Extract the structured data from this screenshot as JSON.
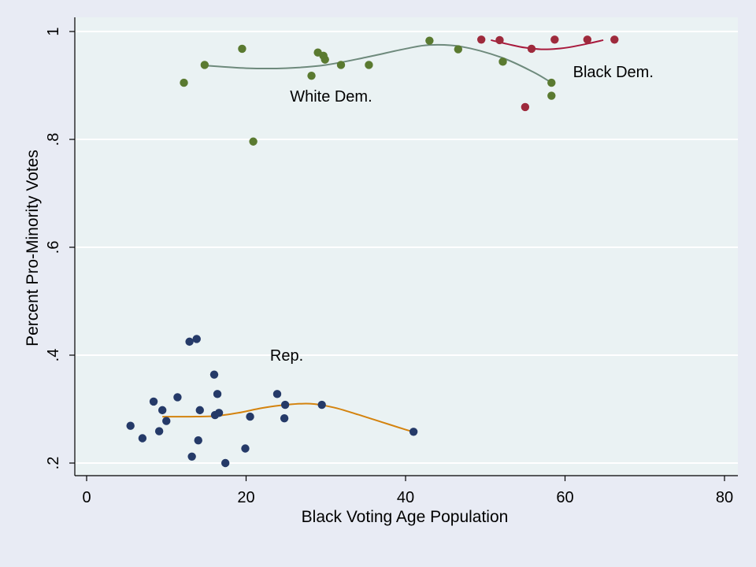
{
  "chart_data": {
    "type": "scatter",
    "title": "",
    "xlabel": "Black Voting Age Population",
    "ylabel": "Percent Pro-Minority Votes",
    "xlim": [
      0,
      80
    ],
    "ylim": [
      0.2,
      1.0
    ],
    "x_ticks": [
      0,
      20,
      40,
      60,
      80
    ],
    "x_tick_labels": [
      "0",
      "20",
      "40",
      "60",
      "80"
    ],
    "y_ticks": [
      0.2,
      0.4,
      0.6,
      0.8,
      1.0
    ],
    "y_tick_labels": [
      ".2",
      ".4",
      ".6",
      ".8",
      "1"
    ],
    "grid": "horizontal",
    "legend": "none",
    "annotations": [
      {
        "text": "White Dem.",
        "x": 25.5,
        "y": 0.87
      },
      {
        "text": "Black Dem.",
        "x": 61,
        "y": 0.915
      },
      {
        "text": "Rep.",
        "x": 23,
        "y": 0.39
      }
    ],
    "series": [
      {
        "color": "#5a7a30",
        "line_color": "#6e8a7c",
        "points": [
          [
            12.2,
            0.905
          ],
          [
            14.8,
            0.938
          ],
          [
            19.5,
            0.968
          ],
          [
            20.9,
            0.796
          ],
          [
            28.2,
            0.918
          ],
          [
            29.0,
            0.961
          ],
          [
            29.7,
            0.955
          ],
          [
            29.9,
            0.948
          ],
          [
            31.9,
            0.938
          ],
          [
            35.4,
            0.938
          ],
          [
            43.0,
            0.983
          ],
          [
            46.6,
            0.967
          ],
          [
            52.2,
            0.944
          ],
          [
            58.3,
            0.905
          ],
          [
            58.3,
            0.881
          ]
        ],
        "smooth": [
          [
            14.8,
            0.937
          ],
          [
            20,
            0.932
          ],
          [
            25,
            0.932
          ],
          [
            30,
            0.938
          ],
          [
            35,
            0.952
          ],
          [
            40,
            0.968
          ],
          [
            43,
            0.975
          ],
          [
            47,
            0.972
          ],
          [
            52,
            0.952
          ],
          [
            56,
            0.925
          ],
          [
            58.3,
            0.905
          ]
        ]
      },
      {
        "color": "#9e2a3c",
        "line_color": "#a8193c",
        "points": [
          [
            49.5,
            0.985
          ],
          [
            51.8,
            0.984
          ],
          [
            55.0,
            0.86
          ],
          [
            55.8,
            0.968
          ],
          [
            58.7,
            0.985
          ],
          [
            62.8,
            0.985
          ],
          [
            66.2,
            0.985
          ]
        ],
        "smooth": [
          [
            50.7,
            0.984
          ],
          [
            53,
            0.976
          ],
          [
            55,
            0.97
          ],
          [
            57,
            0.967
          ],
          [
            59,
            0.968
          ],
          [
            61,
            0.972
          ],
          [
            63,
            0.978
          ],
          [
            64.8,
            0.984
          ]
        ]
      },
      {
        "color": "#253a68",
        "line_color": "#d4830e",
        "points": [
          [
            5.5,
            0.269
          ],
          [
            7.0,
            0.246
          ],
          [
            8.4,
            0.314
          ],
          [
            9.1,
            0.259
          ],
          [
            9.5,
            0.298
          ],
          [
            10.0,
            0.278
          ],
          [
            11.4,
            0.322
          ],
          [
            12.9,
            0.425
          ],
          [
            13.2,
            0.212
          ],
          [
            13.8,
            0.43
          ],
          [
            14.0,
            0.242
          ],
          [
            14.2,
            0.298
          ],
          [
            16.0,
            0.364
          ],
          [
            16.1,
            0.289
          ],
          [
            16.4,
            0.328
          ],
          [
            16.6,
            0.293
          ],
          [
            17.4,
            0.2
          ],
          [
            19.9,
            0.227
          ],
          [
            20.5,
            0.286
          ],
          [
            23.9,
            0.328
          ],
          [
            24.8,
            0.283
          ],
          [
            24.9,
            0.308
          ],
          [
            29.5,
            0.308
          ],
          [
            41.0,
            0.258
          ]
        ],
        "smooth": [
          [
            9.5,
            0.286
          ],
          [
            13,
            0.286
          ],
          [
            16,
            0.287
          ],
          [
            19,
            0.293
          ],
          [
            22,
            0.302
          ],
          [
            25,
            0.308
          ],
          [
            28,
            0.31
          ],
          [
            31,
            0.303
          ],
          [
            34,
            0.29
          ],
          [
            37,
            0.276
          ],
          [
            40,
            0.262
          ],
          [
            41,
            0.258
          ]
        ]
      }
    ]
  }
}
